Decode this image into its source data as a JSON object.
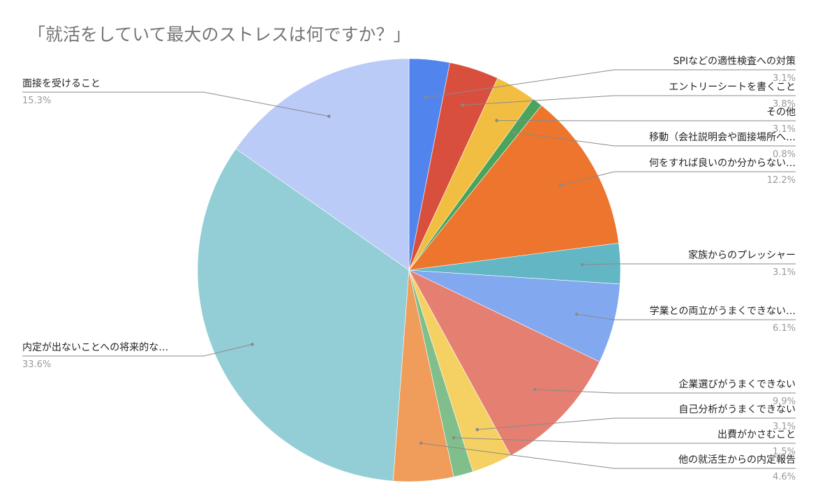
{
  "title": "「就活をしていて最大のストレスは何ですか？」",
  "chart_data": {
    "type": "pie",
    "title": "「就活をしていて最大のストレスは何ですか？」",
    "legend_position": "outside labels with leader lines",
    "start_angle": "12 o'clock, clockwise",
    "slices": [
      {
        "label": "SPIなどの適性検査への対策",
        "percent_text": "3.1%",
        "value": 3.1,
        "color": "#5184ec",
        "side": "right"
      },
      {
        "label": "エントリーシートを書くこと",
        "percent_text": "3.8%",
        "value": 3.8,
        "color": "#d94f3d",
        "side": "right"
      },
      {
        "label": "その他",
        "percent_text": "3.1%",
        "value": 3.1,
        "color": "#f2be42",
        "side": "right"
      },
      {
        "label": "移動（会社説明会や面接場所へ…",
        "percent_text": "0.8%",
        "value": 0.8,
        "color": "#4aa45b",
        "side": "right"
      },
      {
        "label": "何をすれば良いのか分からない…",
        "percent_text": "12.2%",
        "value": 12.2,
        "color": "#ed752e",
        "side": "right"
      },
      {
        "label": "家族からのプレッシャー",
        "percent_text": "3.1%",
        "value": 3.1,
        "color": "#63b6c4",
        "side": "right"
      },
      {
        "label": "学業との両立がうまくできない…",
        "percent_text": "6.1%",
        "value": 6.1,
        "color": "#82a8f0",
        "side": "right"
      },
      {
        "label": "企業選びがうまくできない",
        "percent_text": "9.9%",
        "value": 9.9,
        "color": "#e47f72",
        "side": "right"
      },
      {
        "label": "自己分析がうまくできない",
        "percent_text": "3.1%",
        "value": 3.1,
        "color": "#f5d163",
        "side": "right"
      },
      {
        "label": "出費がかさむこと",
        "percent_text": "1.5%",
        "value": 1.5,
        "color": "#80bf8c",
        "side": "right"
      },
      {
        "label": "他の就活生からの内定報告",
        "percent_text": "4.6%",
        "value": 4.6,
        "color": "#f09c5a",
        "side": "right"
      },
      {
        "label": "内定が出ないことへの将来的な…",
        "percent_text": "33.6%",
        "value": 33.6,
        "color": "#93ced6",
        "side": "left"
      },
      {
        "label": "面接を受けること",
        "percent_text": "15.3%",
        "value": 15.3,
        "color": "#bacbf7",
        "side": "left"
      }
    ]
  }
}
